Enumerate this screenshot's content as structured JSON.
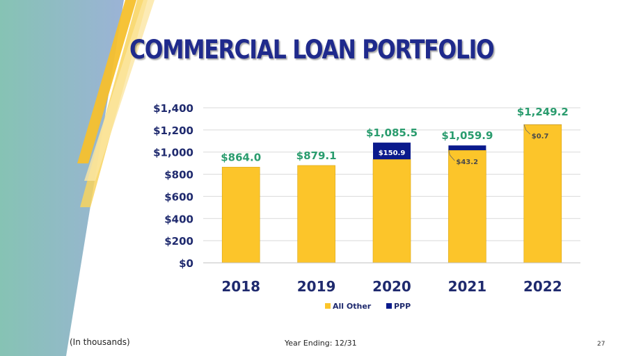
{
  "slide": {
    "title": "COMMERCIAL LOAN PORTFOLIO",
    "footnote": "(In thousands)",
    "period_note": "Year Ending: 12/31",
    "page_number": "27"
  },
  "colors": {
    "all_other": "#fcc52a",
    "ppp": "#0a1a8c",
    "total_label": "#2a9c6e",
    "axis_text": "#1f2a6e",
    "title": "#1f2a8c"
  },
  "chart_data": {
    "type": "bar",
    "stacked": true,
    "categories": [
      "2018",
      "2019",
      "2020",
      "2021",
      "2022"
    ],
    "series": [
      {
        "name": "All Other",
        "values": [
          864.0,
          879.1,
          934.6,
          1016.7,
          1248.5
        ]
      },
      {
        "name": "PPP",
        "values": [
          0,
          0,
          150.9,
          43.2,
          0.7
        ]
      }
    ],
    "totals": [
      864.0,
      879.1,
      1085.5,
      1059.9,
      1249.2
    ],
    "total_labels": [
      "$864.0",
      "$879.1",
      "$1,085.5",
      "$1,059.9",
      "$1,249.2"
    ],
    "ppp_labels": [
      "",
      "",
      "$150.9",
      "$43.2",
      "$0.7"
    ],
    "y_ticks": [
      0,
      200,
      400,
      600,
      800,
      1000,
      1200,
      1400
    ],
    "y_tick_labels": [
      "$0",
      "$200",
      "$400",
      "$600",
      "$800",
      "$1,000",
      "$1,200",
      "$1,400"
    ],
    "ylim": [
      0,
      1400
    ],
    "grid": true,
    "legend_position": "bottom",
    "title": "",
    "xlabel": "",
    "ylabel": ""
  }
}
